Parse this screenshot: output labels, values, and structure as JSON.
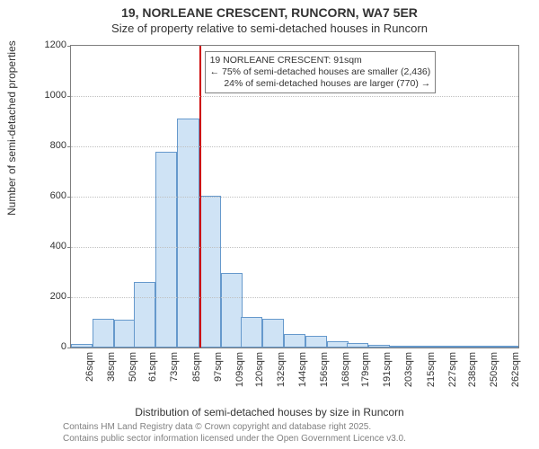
{
  "title": "19, NORLEANE CRESCENT, RUNCORN, WA7 5ER",
  "subtitle": "Size of property relative to semi-detached houses in Runcorn",
  "ylabel": "Number of semi-detached properties",
  "xlabel": "Distribution of semi-detached houses by size in Runcorn",
  "attribution_line1": "Contains HM Land Registry data © Crown copyright and database right 2025.",
  "attribution_line2": "Contains public sector information licensed under the Open Government Licence v3.0.",
  "chart": {
    "type": "histogram",
    "ylim": [
      0,
      1200
    ],
    "ytick_step": 200,
    "background_color": "#ffffff",
    "grid_color": "#c0c0c0",
    "border_color": "#7f7f7f",
    "bar_fill": "#cfe3f5",
    "bar_stroke": "#6699cc",
    "refline_color": "#cc0000",
    "refline_x": 91,
    "xrange": [
      20,
      268
    ],
    "bar_width_units": 12,
    "bars": [
      {
        "x": 26,
        "y": 15
      },
      {
        "x": 38,
        "y": 115
      },
      {
        "x": 50,
        "y": 110
      },
      {
        "x": 61,
        "y": 260
      },
      {
        "x": 73,
        "y": 780
      },
      {
        "x": 85,
        "y": 910
      },
      {
        "x": 97,
        "y": 605
      },
      {
        "x": 109,
        "y": 295
      },
      {
        "x": 120,
        "y": 120
      },
      {
        "x": 132,
        "y": 115
      },
      {
        "x": 144,
        "y": 55
      },
      {
        "x": 156,
        "y": 45
      },
      {
        "x": 168,
        "y": 25
      },
      {
        "x": 179,
        "y": 18
      },
      {
        "x": 191,
        "y": 10
      },
      {
        "x": 203,
        "y": 8
      },
      {
        "x": 215,
        "y": 5
      },
      {
        "x": 227,
        "y": 5
      },
      {
        "x": 238,
        "y": 3
      },
      {
        "x": 250,
        "y": 3
      },
      {
        "x": 262,
        "y": 3
      }
    ],
    "xtick_labels": [
      "26sqm",
      "38sqm",
      "50sqm",
      "61sqm",
      "73sqm",
      "85sqm",
      "97sqm",
      "109sqm",
      "120sqm",
      "132sqm",
      "144sqm",
      "156sqm",
      "168sqm",
      "179sqm",
      "191sqm",
      "203sqm",
      "215sqm",
      "227sqm",
      "238sqm",
      "250sqm",
      "262sqm"
    ]
  },
  "annotation": {
    "line1": "19 NORLEANE CRESCENT: 91sqm",
    "line2": "← 75% of semi-detached houses are smaller (2,436)",
    "line3": "24% of semi-detached houses are larger (770) →",
    "box_border": "#7f7f7f",
    "box_bg": "#ffffff",
    "fontsize": 10.5
  }
}
